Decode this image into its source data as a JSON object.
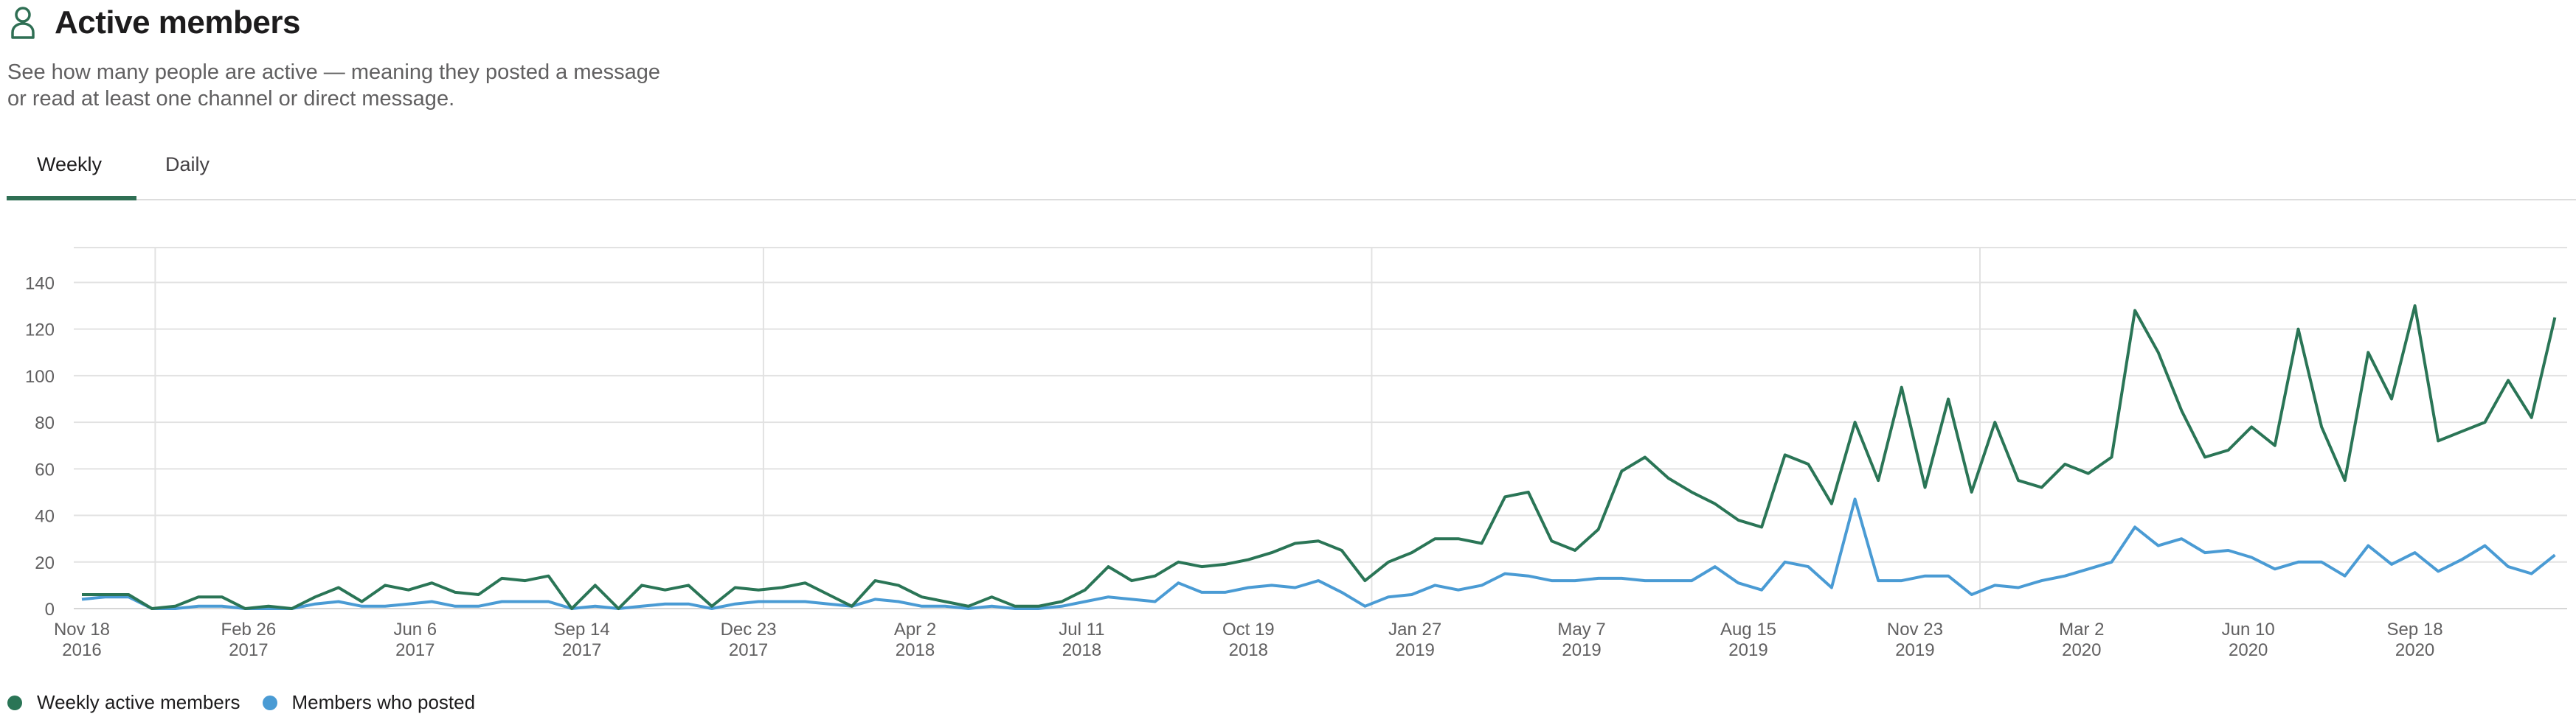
{
  "header": {
    "icon": "user-icon",
    "title": "Active members",
    "description": "See how many people are active — meaning they posted a message or read at least one channel or direct message."
  },
  "tabs": [
    {
      "label": "Weekly",
      "selected": true
    },
    {
      "label": "Daily",
      "selected": false
    }
  ],
  "colors": {
    "accent": "#2f6f54",
    "active": "#2a7556",
    "posted": "#4a9bd4",
    "grid": "#e2e2e2"
  },
  "chart_data": {
    "type": "line",
    "title": "",
    "xlabel": "",
    "ylabel": "",
    "ylim": [
      0,
      155
    ],
    "y_ticks": [
      0,
      20,
      40,
      60,
      80,
      100,
      120,
      140
    ],
    "grid": true,
    "legend_position": "bottom-left",
    "x_ticks": [
      {
        "date": "2016-11-18",
        "label": "Nov 18",
        "year": "2016"
      },
      {
        "date": "2017-02-26",
        "label": "Feb 26",
        "year": "2017"
      },
      {
        "date": "2017-06-06",
        "label": "Jun 6",
        "year": "2017"
      },
      {
        "date": "2017-09-14",
        "label": "Sep 14",
        "year": "2017"
      },
      {
        "date": "2017-12-23",
        "label": "Dec 23",
        "year": "2017"
      },
      {
        "date": "2018-04-02",
        "label": "Apr 2",
        "year": "2018"
      },
      {
        "date": "2018-07-11",
        "label": "Jul 11",
        "year": "2018"
      },
      {
        "date": "2018-10-19",
        "label": "Oct 19",
        "year": "2018"
      },
      {
        "date": "2019-01-27",
        "label": "Jan 27",
        "year": "2019"
      },
      {
        "date": "2019-05-07",
        "label": "May 7",
        "year": "2019"
      },
      {
        "date": "2019-08-15",
        "label": "Aug 15",
        "year": "2019"
      },
      {
        "date": "2019-11-23",
        "label": "Nov 23",
        "year": "2019"
      },
      {
        "date": "2020-03-02",
        "label": "Mar 2",
        "year": "2020"
      },
      {
        "date": "2020-06-10",
        "label": "Jun 10",
        "year": "2020"
      },
      {
        "date": "2020-09-18",
        "label": "Sep 18",
        "year": "2020"
      }
    ],
    "x": [
      "2016-11-18",
      "2016-12-02",
      "2016-12-16",
      "2016-12-30",
      "2017-01-13",
      "2017-01-27",
      "2017-02-10",
      "2017-02-24",
      "2017-03-10",
      "2017-03-24",
      "2017-04-07",
      "2017-04-21",
      "2017-05-05",
      "2017-05-19",
      "2017-06-02",
      "2017-06-16",
      "2017-06-30",
      "2017-07-14",
      "2017-07-28",
      "2017-08-11",
      "2017-08-25",
      "2017-09-08",
      "2017-09-22",
      "2017-10-06",
      "2017-10-20",
      "2017-11-03",
      "2017-11-17",
      "2017-12-01",
      "2017-12-15",
      "2017-12-29",
      "2018-01-12",
      "2018-01-26",
      "2018-02-09",
      "2018-02-23",
      "2018-03-09",
      "2018-03-23",
      "2018-04-06",
      "2018-04-20",
      "2018-05-04",
      "2018-05-18",
      "2018-06-01",
      "2018-06-15",
      "2018-06-29",
      "2018-07-13",
      "2018-07-27",
      "2018-08-10",
      "2018-08-24",
      "2018-09-07",
      "2018-09-21",
      "2018-10-05",
      "2018-10-19",
      "2018-11-02",
      "2018-11-16",
      "2018-11-30",
      "2018-12-14",
      "2018-12-28",
      "2019-01-11",
      "2019-01-25",
      "2019-02-08",
      "2019-02-22",
      "2019-03-08",
      "2019-03-22",
      "2019-04-05",
      "2019-04-19",
      "2019-05-03",
      "2019-05-17",
      "2019-05-31",
      "2019-06-14",
      "2019-06-28",
      "2019-07-12",
      "2019-07-26",
      "2019-08-09",
      "2019-08-23",
      "2019-09-06",
      "2019-09-20",
      "2019-10-04",
      "2019-10-18",
      "2019-11-01",
      "2019-11-15",
      "2019-11-29",
      "2019-12-13",
      "2019-12-27",
      "2020-01-10",
      "2020-01-24",
      "2020-02-07",
      "2020-02-21",
      "2020-03-06",
      "2020-03-20",
      "2020-04-03",
      "2020-04-17",
      "2020-05-01",
      "2020-05-15",
      "2020-05-29",
      "2020-06-12",
      "2020-06-26",
      "2020-07-10",
      "2020-07-24",
      "2020-08-07",
      "2020-08-21",
      "2020-09-04",
      "2020-09-18",
      "2020-10-02",
      "2020-10-16",
      "2020-10-30",
      "2020-11-13",
      "2020-11-27",
      "2020-12-11"
    ],
    "series": [
      {
        "name": "Weekly active members",
        "color": "#2a7556",
        "values": [
          6,
          6,
          6,
          0,
          1,
          5,
          5,
          0,
          1,
          0,
          5,
          9,
          3,
          10,
          8,
          11,
          7,
          6,
          13,
          12,
          14,
          0,
          10,
          0,
          10,
          8,
          10,
          1,
          9,
          8,
          9,
          11,
          6,
          1,
          12,
          10,
          5,
          3,
          1,
          5,
          1,
          1,
          3,
          8,
          18,
          12,
          14,
          20,
          18,
          19,
          21,
          24,
          28,
          29,
          25,
          12,
          20,
          24,
          30,
          30,
          28,
          48,
          50,
          29,
          25,
          34,
          59,
          65,
          56,
          50,
          45,
          38,
          35,
          66,
          62,
          45,
          80,
          55,
          95,
          52,
          90,
          50,
          80,
          55,
          52,
          62,
          58,
          65,
          128,
          110,
          85,
          65,
          68,
          78,
          70,
          120,
          78,
          55,
          110,
          90,
          130,
          72,
          76,
          80,
          98,
          82,
          125
        ]
      },
      {
        "name": "Members who posted",
        "color": "#4a9bd4",
        "values": [
          4,
          5,
          5,
          0,
          0,
          1,
          1,
          0,
          0,
          0,
          2,
          3,
          1,
          1,
          2,
          3,
          1,
          1,
          3,
          3,
          3,
          0,
          1,
          0,
          1,
          2,
          2,
          0,
          2,
          3,
          3,
          3,
          2,
          1,
          4,
          3,
          1,
          1,
          0,
          1,
          0,
          0,
          1,
          3,
          5,
          4,
          3,
          11,
          7,
          7,
          9,
          10,
          9,
          12,
          7,
          1,
          5,
          6,
          10,
          8,
          10,
          15,
          14,
          12,
          12,
          13,
          13,
          12,
          12,
          12,
          18,
          11,
          8,
          20,
          18,
          9,
          47,
          12,
          12,
          14,
          14,
          6,
          10,
          9,
          12,
          14,
          17,
          20,
          35,
          27,
          30,
          24,
          25,
          22,
          17,
          20,
          20,
          14,
          27,
          19,
          24,
          16,
          21,
          27,
          18,
          15,
          23
        ]
      }
    ]
  }
}
